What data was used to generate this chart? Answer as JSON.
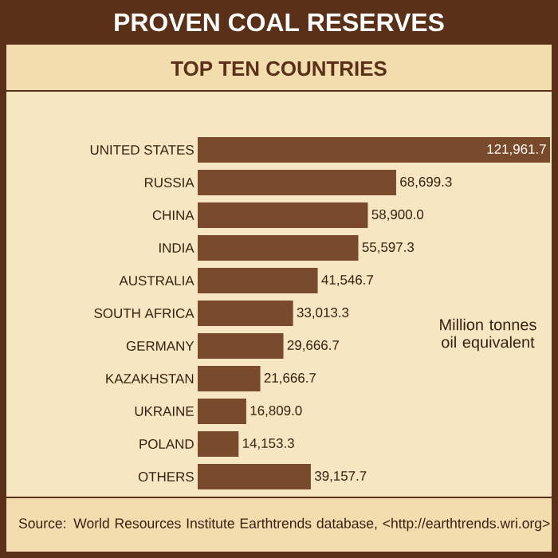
{
  "chart_data": {
    "type": "bar",
    "orientation": "horizontal",
    "title": "PROVEN COAL RESERVES",
    "subtitle": "TOP TEN COUNTRIES",
    "categories": [
      "UNITED STATES",
      "RUSSIA",
      "CHINA",
      "INDIA",
      "AUSTRALIA",
      "SOUTH AFRICA",
      "GERMANY",
      "KAZAKHSTAN",
      "UKRAINE",
      "POLAND",
      "OTHERS"
    ],
    "values": [
      121961.7,
      68699.3,
      58900.0,
      55597.3,
      41546.7,
      33013.3,
      29666.7,
      21666.7,
      16809.0,
      14153.3,
      39157.7
    ],
    "value_labels": [
      "121,961.7",
      "68,699.3",
      "58,900.0",
      "55,597.3",
      "41,546.7",
      "33,013.3",
      "29,666.7",
      "21,666.7",
      "16,809.0",
      "14,153.3",
      "39,157.7"
    ],
    "color": "#7a4a2c",
    "annotations": [
      "Million tonnes oil equivalent",
      "Source: World Resources Institute Earthtrends database, <http://earthtrends.wri.org>"
    ]
  }
}
